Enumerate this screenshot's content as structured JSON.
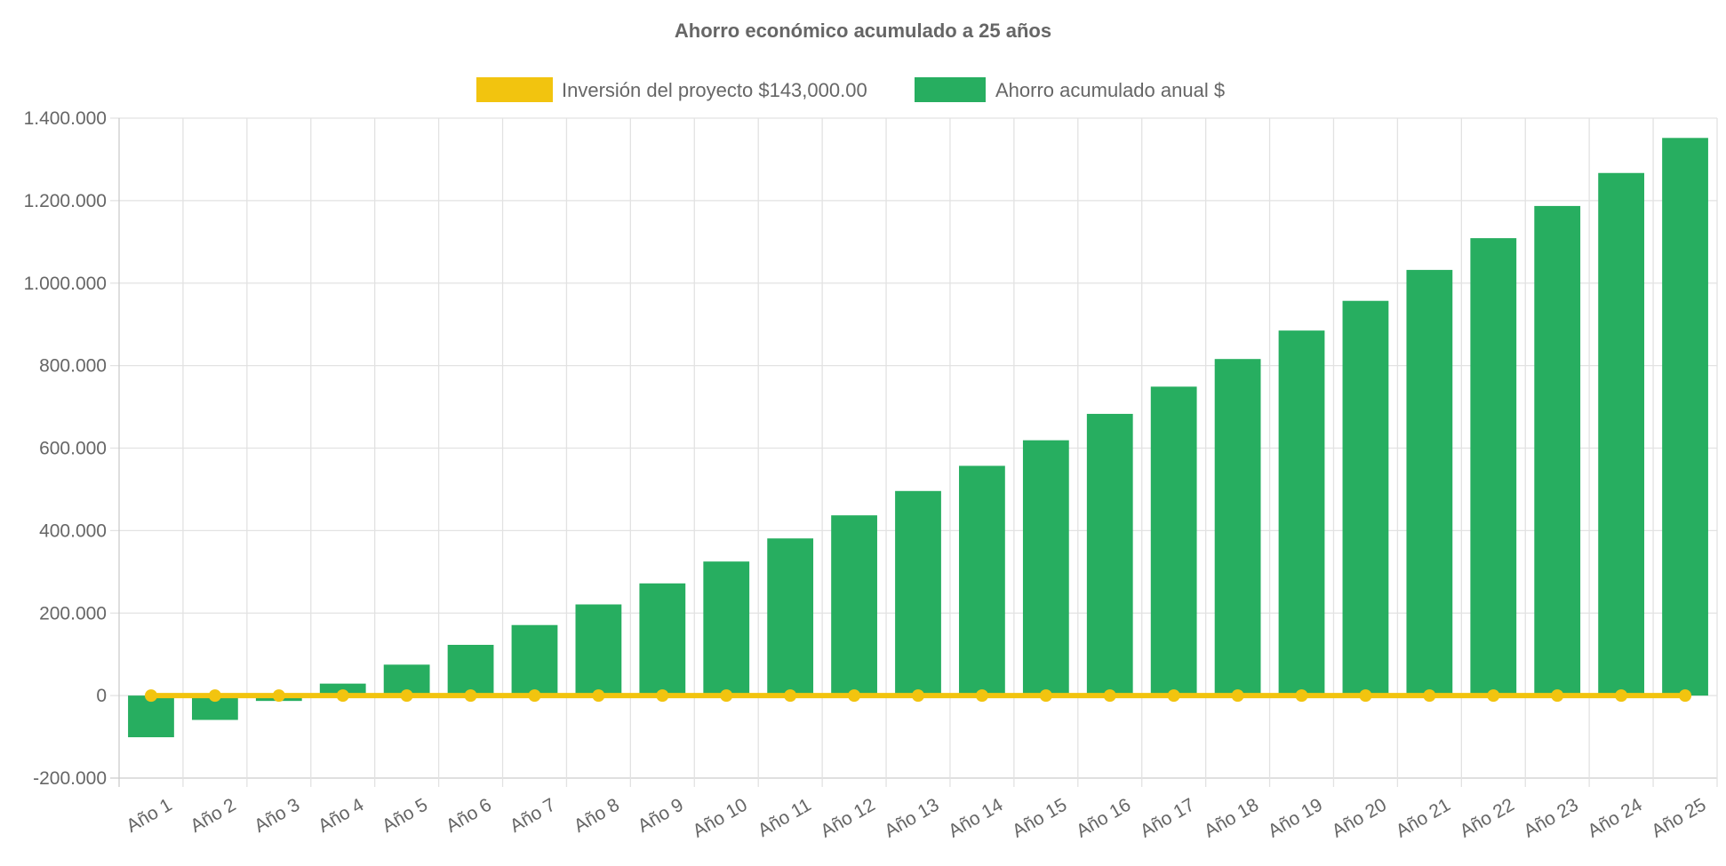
{
  "chart_data": {
    "type": "bar",
    "title": "Ahorro económico acumulado a 25 años",
    "categories": [
      "Año 1",
      "Año 2",
      "Año 3",
      "Año 4",
      "Año 5",
      "Año 6",
      "Año 7",
      "Año 8",
      "Año 9",
      "Año 10",
      "Año 11",
      "Año 12",
      "Año 13",
      "Año 14",
      "Año 15",
      "Año 16",
      "Año 17",
      "Año 18",
      "Año 19",
      "Año 20",
      "Año 21",
      "Año 22",
      "Año 23",
      "Año 24",
      "Año 25"
    ],
    "series": [
      {
        "name": "Inversión del proyecto $143,000.00",
        "type": "line",
        "color": "#f2c40f",
        "values": [
          0,
          0,
          0,
          0,
          0,
          0,
          0,
          0,
          0,
          0,
          0,
          0,
          0,
          0,
          0,
          0,
          0,
          0,
          0,
          0,
          0,
          0,
          0,
          0,
          0
        ]
      },
      {
        "name": "Ahorro acumulado anual $",
        "type": "bar",
        "color": "#27ae60",
        "values": [
          -101000,
          -59000,
          -13000,
          29000,
          75000,
          123000,
          171000,
          221000,
          272000,
          325000,
          381000,
          437000,
          496000,
          557000,
          619000,
          683000,
          749000,
          816000,
          885000,
          957000,
          1032000,
          1109000,
          1187000,
          1267000,
          1352000
        ]
      }
    ],
    "ylim": [
      -200000,
      1400000
    ],
    "yticks": [
      "-200.000",
      "0",
      "200.000",
      "400.000",
      "600.000",
      "800.000",
      "1.000.000",
      "1.200.000",
      "1.400.000"
    ],
    "grid": true,
    "legend": "top"
  }
}
